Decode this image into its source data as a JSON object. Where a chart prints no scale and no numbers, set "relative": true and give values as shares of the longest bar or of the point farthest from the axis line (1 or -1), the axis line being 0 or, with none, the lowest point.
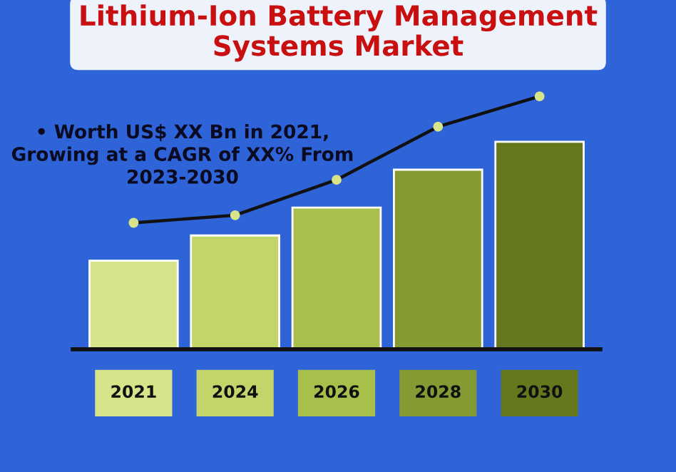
{
  "chart_data": {
    "type": "bar",
    "title": "Lithium-Ion Battery Management\nSystems Market",
    "relative": true,
    "categories": [
      "2021",
      "2024",
      "2026",
      "2028",
      "2030"
    ],
    "annotations": [
      "• Worth US$ XX Bn in 2021,\nGrowing at a CAGR of XX% From\n2023-2030"
    ],
    "series": [
      {
        "colors": [
          "#d8e48a",
          "#c2d46a",
          "#a9bf4c",
          "#859a32",
          "#66781e"
        ],
        "values": [
          0.35,
          0.45,
          0.56,
          0.71,
          0.82
        ]
      },
      {
        "type": "line",
        "color": "#111111",
        "values": [
          0.5,
          0.53,
          0.67,
          0.88,
          1.0
        ],
        "marker": "circle",
        "line_style": "solid"
      }
    ],
    "grid": false,
    "legend": false
  }
}
